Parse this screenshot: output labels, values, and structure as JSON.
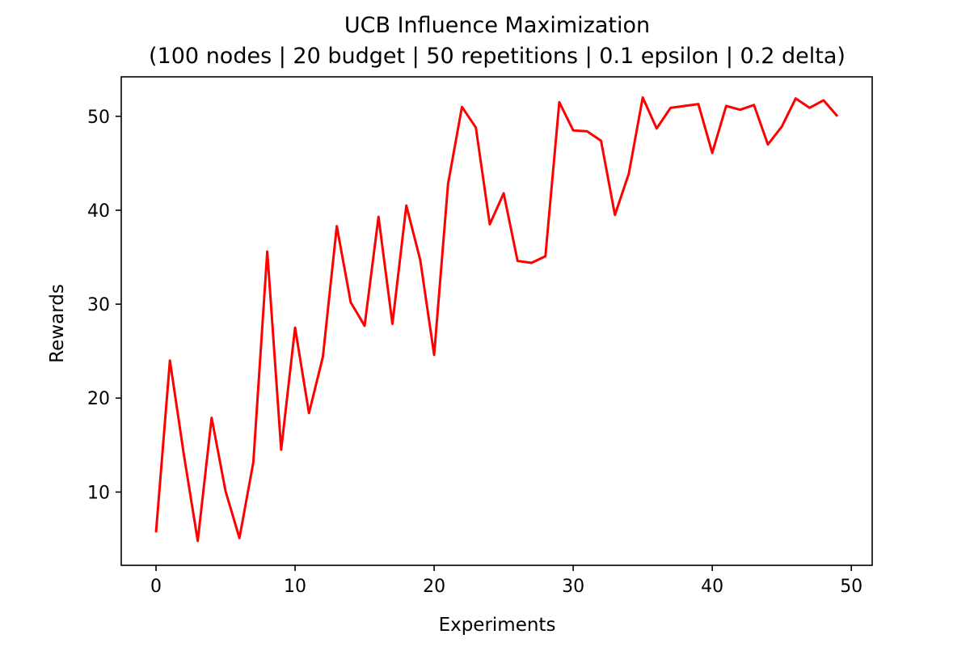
{
  "chart_data": {
    "type": "line",
    "title": "UCB Influence Maximization",
    "subtitle": "(100 nodes | 20 budget | 50 repetitions | 0.1 epsilon | 0.2 delta)",
    "xlabel": "Experiments",
    "ylabel": "Rewards",
    "xlim": [
      -2.5,
      51.5
    ],
    "ylim": [
      2.2,
      54.2
    ],
    "xticks": [
      0,
      10,
      20,
      30,
      40,
      50
    ],
    "yticks": [
      10,
      20,
      30,
      40,
      50
    ],
    "grid": false,
    "series": [
      {
        "color": "#ff0000",
        "x": [
          0,
          1,
          2,
          3,
          4,
          5,
          6,
          7,
          8,
          9,
          10,
          11,
          12,
          13,
          14,
          15,
          16,
          17,
          18,
          19,
          20,
          21,
          22,
          23,
          24,
          25,
          26,
          27,
          28,
          29,
          30,
          31,
          32,
          33,
          34,
          35,
          36,
          37,
          38,
          39,
          40,
          41,
          42,
          43,
          44,
          45,
          46,
          47,
          48,
          49
        ],
        "values": [
          5.7,
          24.0,
          14.0,
          4.8,
          17.9,
          10.1,
          5.1,
          13.2,
          35.6,
          14.5,
          27.5,
          18.4,
          24.4,
          38.3,
          30.2,
          27.7,
          39.3,
          27.9,
          40.5,
          34.7,
          24.6,
          42.8,
          51.0,
          48.8,
          38.5,
          41.8,
          34.6,
          34.4,
          35.1,
          51.5,
          48.5,
          48.4,
          47.4,
          39.5,
          43.9,
          52.0,
          48.7,
          50.9,
          51.1,
          51.3,
          46.1,
          51.1,
          50.7,
          51.2,
          47.0,
          48.9,
          51.9,
          50.9,
          51.7,
          50.0
        ]
      }
    ]
  }
}
